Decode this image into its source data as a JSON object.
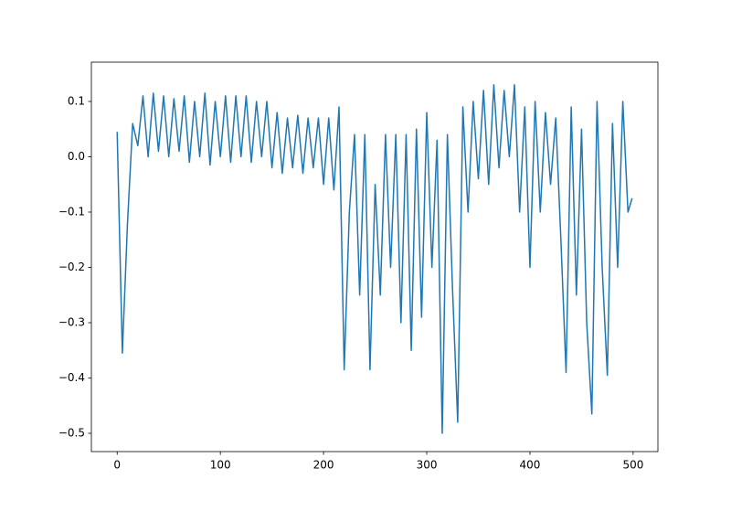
{
  "chart_data": {
    "type": "line",
    "color": "#1f77b4",
    "x": [
      0,
      5,
      10,
      15,
      20,
      25,
      30,
      35,
      40,
      45,
      50,
      55,
      60,
      65,
      70,
      75,
      80,
      85,
      90,
      95,
      100,
      105,
      110,
      115,
      120,
      125,
      130,
      135,
      140,
      145,
      150,
      155,
      160,
      165,
      170,
      175,
      180,
      185,
      190,
      195,
      200,
      205,
      210,
      215,
      220,
      225,
      230,
      235,
      240,
      245,
      250,
      255,
      260,
      265,
      270,
      275,
      280,
      285,
      290,
      295,
      300,
      305,
      310,
      315,
      320,
      325,
      330,
      335,
      340,
      345,
      350,
      355,
      360,
      365,
      370,
      375,
      380,
      385,
      390,
      395,
      400,
      405,
      410,
      415,
      420,
      425,
      430,
      435,
      440,
      445,
      450,
      455,
      460,
      465,
      470,
      475,
      480,
      485,
      490,
      495,
      499
    ],
    "values": [
      0.045,
      -0.355,
      -0.12,
      0.06,
      0.02,
      0.11,
      0.0,
      0.115,
      0.01,
      0.11,
      0.0,
      0.105,
      0.01,
      0.11,
      -0.01,
      0.1,
      0.0,
      0.115,
      -0.015,
      0.1,
      0.0,
      0.11,
      -0.01,
      0.11,
      0.0,
      0.11,
      -0.01,
      0.1,
      0.0,
      0.1,
      -0.02,
      0.08,
      -0.03,
      0.07,
      -0.02,
      0.075,
      -0.03,
      0.07,
      -0.02,
      0.07,
      -0.05,
      0.07,
      -0.06,
      0.09,
      -0.385,
      -0.1,
      0.04,
      -0.25,
      0.04,
      -0.385,
      -0.05,
      -0.25,
      0.04,
      -0.2,
      0.04,
      -0.3,
      0.04,
      -0.35,
      0.05,
      -0.29,
      0.08,
      -0.2,
      0.03,
      -0.5,
      0.04,
      -0.24,
      -0.48,
      0.09,
      -0.1,
      0.1,
      -0.04,
      0.12,
      -0.05,
      0.13,
      -0.02,
      0.12,
      0.0,
      0.13,
      -0.1,
      0.09,
      -0.2,
      0.1,
      -0.1,
      0.08,
      -0.05,
      0.07,
      -0.15,
      -0.39,
      0.09,
      -0.25,
      0.05,
      -0.3,
      -0.465,
      0.1,
      -0.2,
      -0.395,
      0.06,
      -0.2,
      0.1,
      -0.1,
      -0.075
    ],
    "xlim": [
      -25,
      524
    ],
    "ylim": [
      -0.533,
      0.171
    ],
    "xticks": [
      0,
      100,
      200,
      300,
      400,
      500
    ],
    "yticks": [
      {
        "value": -0.5,
        "label": "−0.5"
      },
      {
        "value": -0.4,
        "label": "−0.4"
      },
      {
        "value": -0.3,
        "label": "−0.3"
      },
      {
        "value": -0.2,
        "label": "−0.2"
      },
      {
        "value": -0.1,
        "label": "−0.1"
      },
      {
        "value": 0,
        "label": "0.0"
      },
      0.1
    ]
  }
}
